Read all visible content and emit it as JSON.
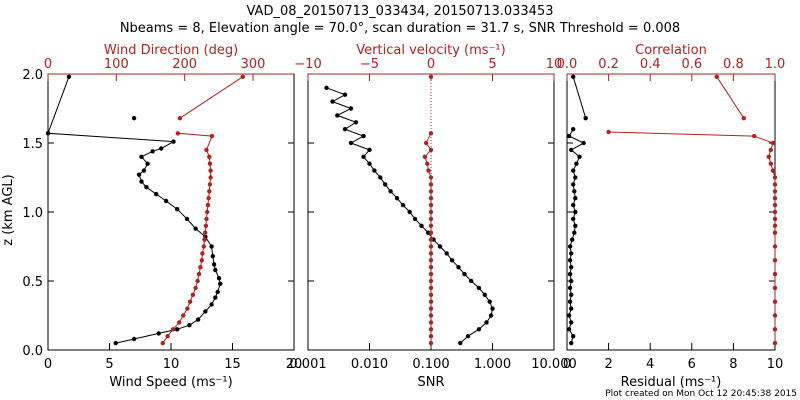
{
  "title": {
    "line1": "VAD_08_20150713_033434, 20150713.033453",
    "line2": "Nbeams = 8, Elevation angle = 70.0°, scan duration = 31.7 s, SNR Threshold = 0.008"
  },
  "footer": "Plot created on Mon Oct 12 20:45:38 2015",
  "colors": {
    "black": "#000000",
    "red": "#b22222"
  },
  "chart_data": [
    {
      "type": "line",
      "panel": "wind",
      "ylabel": "z (km AGL)",
      "ylim": [
        0,
        2
      ],
      "yticks": [
        "0.0",
        "0.5",
        "1.0",
        "1.5",
        "2.0"
      ],
      "grid": false,
      "bottom_axis": {
        "label": "Wind Speed (ms⁻¹)",
        "lim": [
          0,
          20
        ],
        "ticks": [
          "0",
          "5",
          "10",
          "15",
          "20"
        ]
      },
      "top_axis": {
        "label": "Wind Direction (deg)",
        "lim": [
          0,
          360
        ],
        "ticks": [
          "0",
          "100",
          "200",
          "300"
        ],
        "color": "#b22222"
      },
      "series": [
        {
          "axis": "bottom",
          "color": "#000000",
          "points": [
            [
              5.5,
              0.05
            ],
            [
              7,
              0.08
            ],
            [
              9,
              0.12
            ],
            [
              10.5,
              0.15
            ],
            [
              11.5,
              0.18
            ],
            [
              12.2,
              0.22
            ],
            [
              12.8,
              0.28
            ],
            [
              13.3,
              0.33
            ],
            [
              13.6,
              0.38
            ],
            [
              13.8,
              0.42
            ],
            [
              14,
              0.48
            ],
            [
              13.9,
              0.52
            ],
            [
              13.6,
              0.58
            ],
            [
              13.5,
              0.62
            ],
            [
              13.4,
              0.68
            ],
            [
              13.3,
              0.75
            ],
            [
              12.8,
              0.82
            ],
            [
              12,
              0.88
            ],
            [
              11.3,
              0.95
            ],
            [
              10.5,
              1.02
            ],
            [
              9.6,
              1.08
            ],
            [
              8.8,
              1.13
            ],
            [
              8,
              1.18
            ],
            [
              7.6,
              1.22
            ],
            [
              7.4,
              1.27
            ],
            [
              7.8,
              1.3
            ],
            [
              8.1,
              1.35
            ],
            [
              7.6,
              1.4
            ],
            [
              8.5,
              1.44
            ],
            [
              9.2,
              1.46
            ],
            [
              10.2,
              1.51
            ],
            [
              0,
              1.57
            ],
            [
              1.7,
              1.98
            ]
          ]
        },
        {
          "axis": "bottom",
          "color": "#000000",
          "points": [
            [
              7,
              1.68
            ]
          ]
        },
        {
          "axis": "top",
          "color": "#b22222",
          "points": [
            [
              168,
              0.05
            ],
            [
              175,
              0.1
            ],
            [
              183,
              0.15
            ],
            [
              192,
              0.2
            ],
            [
              198,
              0.25
            ],
            [
              204,
              0.3
            ],
            [
              208,
              0.35
            ],
            [
              212,
              0.4
            ],
            [
              216,
              0.45
            ],
            [
              219,
              0.5
            ],
            [
              221,
              0.55
            ],
            [
              223,
              0.6
            ],
            [
              225,
              0.65
            ],
            [
              226,
              0.7
            ],
            [
              228,
              0.75
            ],
            [
              229,
              0.8
            ],
            [
              230,
              0.85
            ],
            [
              231,
              0.9
            ],
            [
              232,
              0.95
            ],
            [
              233,
              1.0
            ],
            [
              234,
              1.05
            ],
            [
              235,
              1.1
            ],
            [
              236,
              1.15
            ],
            [
              237,
              1.2
            ],
            [
              238,
              1.25
            ],
            [
              238,
              1.3
            ],
            [
              237,
              1.35
            ],
            [
              236,
              1.4
            ],
            [
              232,
              1.45
            ],
            [
              240,
              1.55
            ],
            [
              190,
              1.57
            ]
          ]
        },
        {
          "axis": "top",
          "color": "#b22222",
          "points": [
            [
              193,
              1.68
            ],
            [
              285,
              1.98
            ]
          ]
        }
      ]
    },
    {
      "type": "line",
      "panel": "snr",
      "ylim": [
        0,
        2
      ],
      "grid": false,
      "bottom_axis": {
        "label": "SNR",
        "scale": "log",
        "lim": [
          0.001,
          10
        ],
        "ticks": [
          "0.001",
          "0.010",
          "0.100",
          "1.000",
          "10.000"
        ]
      },
      "top_axis": {
        "label": "Vertical velocity (ms⁻¹)",
        "lim": [
          -10,
          10
        ],
        "ticks": [
          "−10",
          "−5",
          "0",
          "5",
          "10"
        ],
        "color": "#b22222",
        "zero_line": true
      },
      "series": [
        {
          "axis": "bottom",
          "color": "#000000",
          "points": [
            [
              0.3,
              0.05
            ],
            [
              0.4,
              0.1
            ],
            [
              0.6,
              0.15
            ],
            [
              0.8,
              0.2
            ],
            [
              0.95,
              0.25
            ],
            [
              1.0,
              0.3
            ],
            [
              0.9,
              0.35
            ],
            [
              0.75,
              0.4
            ],
            [
              0.6,
              0.45
            ],
            [
              0.45,
              0.5
            ],
            [
              0.35,
              0.55
            ],
            [
              0.28,
              0.6
            ],
            [
              0.22,
              0.65
            ],
            [
              0.18,
              0.7
            ],
            [
              0.14,
              0.75
            ],
            [
              0.11,
              0.8
            ],
            [
              0.09,
              0.85
            ],
            [
              0.07,
              0.9
            ],
            [
              0.055,
              0.95
            ],
            [
              0.045,
              1.0
            ],
            [
              0.035,
              1.05
            ],
            [
              0.028,
              1.1
            ],
            [
              0.022,
              1.15
            ],
            [
              0.018,
              1.2
            ],
            [
              0.015,
              1.25
            ],
            [
              0.012,
              1.3
            ],
            [
              0.01,
              1.35
            ],
            [
              0.008,
              1.4
            ],
            [
              0.01,
              1.45
            ],
            [
              0.005,
              1.5
            ],
            [
              0.008,
              1.55
            ],
            [
              0.004,
              1.6
            ],
            [
              0.006,
              1.65
            ],
            [
              0.003,
              1.7
            ],
            [
              0.005,
              1.75
            ],
            [
              0.0025,
              1.8
            ],
            [
              0.004,
              1.85
            ],
            [
              0.002,
              1.9
            ]
          ]
        },
        {
          "axis": "top",
          "color": "#b22222",
          "points": [
            [
              0,
              0.05
            ],
            [
              0,
              0.1
            ],
            [
              0,
              0.15
            ],
            [
              0,
              0.2
            ],
            [
              0,
              0.25
            ],
            [
              0,
              0.3
            ],
            [
              0,
              0.35
            ],
            [
              0,
              0.4
            ],
            [
              0,
              0.45
            ],
            [
              0,
              0.5
            ],
            [
              0,
              0.55
            ],
            [
              0,
              0.6
            ],
            [
              0,
              0.65
            ],
            [
              0,
              0.7
            ],
            [
              0,
              0.75
            ],
            [
              0,
              0.8
            ],
            [
              0,
              0.85
            ],
            [
              0,
              0.9
            ],
            [
              0,
              0.95
            ],
            [
              0,
              1.0
            ],
            [
              0,
              1.05
            ],
            [
              0,
              1.1
            ],
            [
              0,
              1.15
            ],
            [
              0,
              1.2
            ],
            [
              0,
              1.25
            ],
            [
              -0.2,
              1.3
            ],
            [
              -0.3,
              1.35
            ],
            [
              -0.5,
              1.4
            ],
            [
              0,
              1.45
            ],
            [
              -0.4,
              1.5
            ],
            [
              0,
              1.57
            ]
          ]
        },
        {
          "axis": "top",
          "color": "#b22222",
          "points": [
            [
              0,
              1.98
            ]
          ]
        }
      ]
    },
    {
      "type": "line",
      "panel": "correlation",
      "ylim": [
        0,
        2
      ],
      "grid": false,
      "bottom_axis": {
        "label": "Residual (ms⁻¹)",
        "lim": [
          0,
          10
        ],
        "ticks": [
          "0",
          "2",
          "4",
          "6",
          "8",
          "10"
        ]
      },
      "top_axis": {
        "label": "Correlation",
        "lim": [
          0,
          1
        ],
        "ticks": [
          "0.0",
          "0.2",
          "0.4",
          "0.6",
          "0.8",
          "1.0"
        ],
        "color": "#b22222"
      },
      "series": [
        {
          "axis": "bottom",
          "color": "#000000",
          "points": [
            [
              0.2,
              0.05
            ],
            [
              0.3,
              0.1
            ],
            [
              0.1,
              0.15
            ],
            [
              0.2,
              0.2
            ],
            [
              0.1,
              0.25
            ],
            [
              0.2,
              0.3
            ],
            [
              0.15,
              0.35
            ],
            [
              0.2,
              0.4
            ],
            [
              0.15,
              0.45
            ],
            [
              0.2,
              0.5
            ],
            [
              0.15,
              0.55
            ],
            [
              0.2,
              0.6
            ],
            [
              0.15,
              0.65
            ],
            [
              0.2,
              0.7
            ],
            [
              0.15,
              0.75
            ],
            [
              0.25,
              0.8
            ],
            [
              0.35,
              0.85
            ],
            [
              0.4,
              0.9
            ],
            [
              0.3,
              0.95
            ],
            [
              0.4,
              1.0
            ],
            [
              0.3,
              1.05
            ],
            [
              0.4,
              1.1
            ],
            [
              0.35,
              1.15
            ],
            [
              0.3,
              1.2
            ],
            [
              0.4,
              1.25
            ],
            [
              0.3,
              1.3
            ],
            [
              0.45,
              1.35
            ],
            [
              0.6,
              1.4
            ],
            [
              0.2,
              1.45
            ],
            [
              0.8,
              1.5
            ],
            [
              0.1,
              1.55
            ],
            [
              0.3,
              1.6
            ]
          ]
        },
        {
          "axis": "bottom",
          "color": "#000000",
          "points": [
            [
              0.9,
              1.68
            ],
            [
              0.3,
              1.98
            ]
          ]
        },
        {
          "axis": "top",
          "color": "#b22222",
          "points": [
            [
              1.0,
              0.05
            ],
            [
              1.0,
              0.15
            ],
            [
              1.0,
              0.25
            ],
            [
              1.0,
              0.35
            ],
            [
              1.0,
              0.45
            ],
            [
              1.0,
              0.55
            ],
            [
              1.0,
              0.65
            ],
            [
              1.0,
              0.75
            ],
            [
              1.0,
              0.85
            ],
            [
              1.0,
              0.9
            ],
            [
              1.0,
              0.95
            ],
            [
              1.0,
              1.0
            ],
            [
              1.0,
              1.05
            ],
            [
              1.0,
              1.1
            ],
            [
              1.0,
              1.15
            ],
            [
              1.0,
              1.2
            ],
            [
              1.0,
              1.25
            ],
            [
              0.99,
              1.3
            ],
            [
              0.98,
              1.35
            ],
            [
              0.97,
              1.4
            ],
            [
              0.98,
              1.45
            ],
            [
              0.99,
              1.5
            ],
            [
              0.9,
              1.55
            ],
            [
              0.2,
              1.58
            ]
          ]
        },
        {
          "axis": "top",
          "color": "#b22222",
          "points": [
            [
              0.85,
              1.68
            ],
            [
              0.72,
              1.98
            ]
          ]
        }
      ]
    }
  ]
}
